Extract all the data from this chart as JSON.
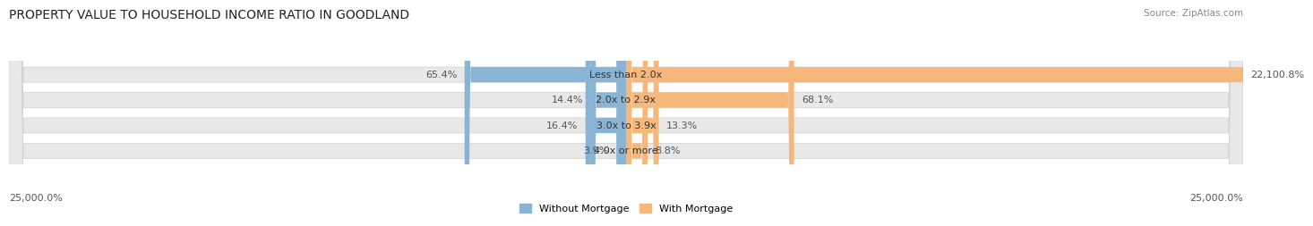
{
  "title": "PROPERTY VALUE TO HOUSEHOLD INCOME RATIO IN GOODLAND",
  "source": "Source: ZipAtlas.com",
  "categories": [
    "Less than 2.0x",
    "2.0x to 2.9x",
    "3.0x to 3.9x",
    "4.0x or more"
  ],
  "without_mortgage": [
    65.4,
    14.4,
    16.4,
    3.9
  ],
  "with_mortgage": [
    22100.8,
    68.1,
    13.3,
    8.8
  ],
  "without_mortgage_color": "#8ab4d4",
  "with_mortgage_color": "#f5b87a",
  "bar_bg_color": "#e8e8e8",
  "bar_bg_edge_color": "#d0d0d0",
  "xlim_abs": 25000,
  "x_left_label": "25,000.0%",
  "x_right_label": "25,000.0%",
  "legend_without": "Without Mortgage",
  "legend_with": "With Mortgage",
  "title_fontsize": 10,
  "source_fontsize": 7.5,
  "label_fontsize": 8,
  "cat_fontsize": 8,
  "tick_fontsize": 8,
  "scale": 100
}
